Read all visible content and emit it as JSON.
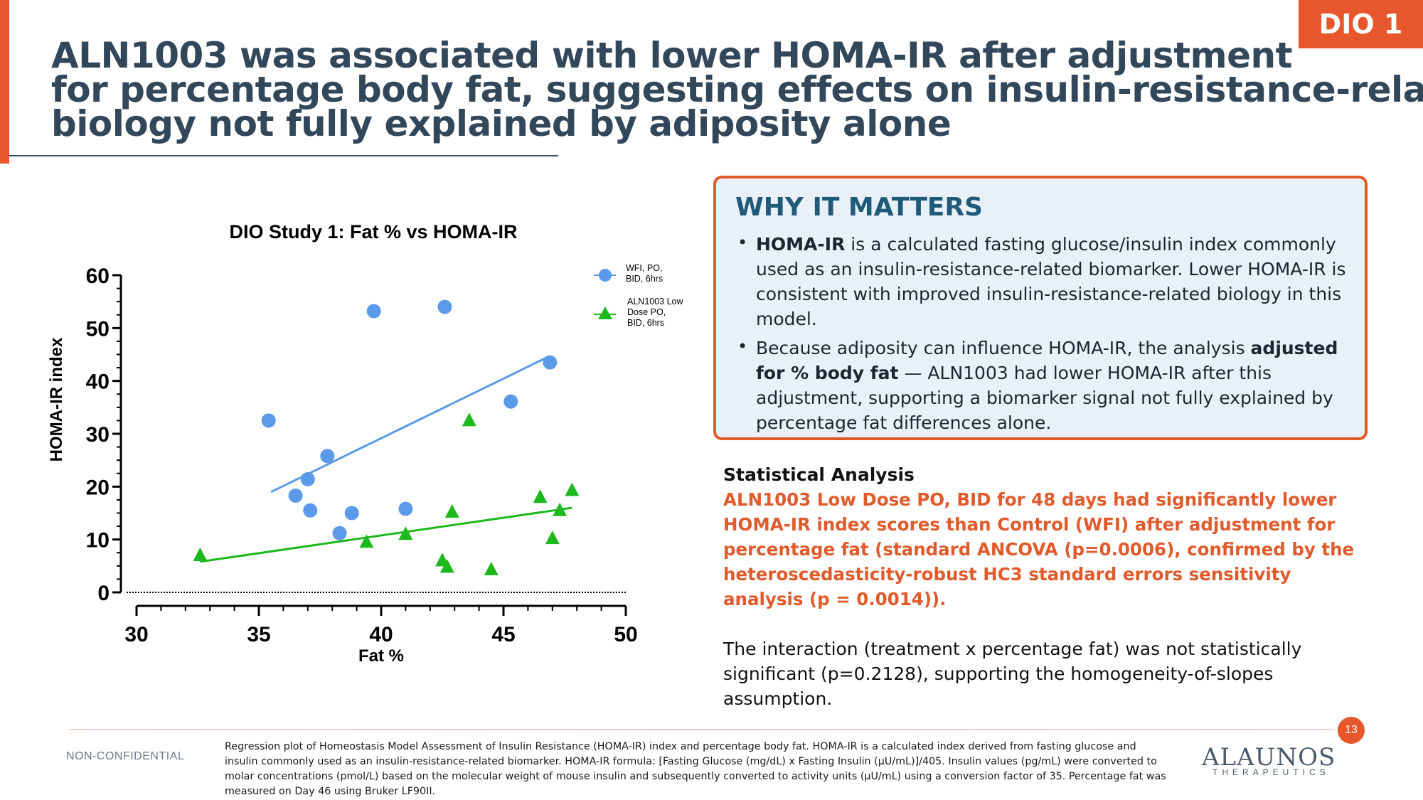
{
  "tag": "DIO 1",
  "title": {
    "line1": "ALN1003 was associated with lower HOMA-IR after adjustment",
    "line2": "for percentage body fat, suggesting effects on insulin-resistance-related",
    "line3": "biology not fully explained by adiposity alone"
  },
  "why": {
    "title": "WHY IT MATTERS",
    "b1_bold": "HOMA-IR",
    "b1_text": " is a calculated fasting glucose/insulin index commonly used as an insulin-resistance-related biomarker. Lower HOMA-IR is consistent with improved insulin-resistance-related biology in this model.",
    "b2_pre": "Because adiposity can influence HOMA-IR, the analysis ",
    "b2_bold": "adjusted for % body fat",
    "b2_post": " — ALN1003 had lower HOMA-IR after this adjustment, supporting a biomarker signal not fully explained by percentage fat differences alone."
  },
  "stats": {
    "heading": "Statistical Analysis",
    "highlight": "ALN1003 Low Dose PO, BID for 48 days had significantly lower HOMA-IR index scores than Control (WFI) after adjustment for percentage fat (standard ANCOVA (p=0.0006), confirmed by the heteroscedasticity-robust HC3 standard errors sensitivity analysis (p = 0.0014)).",
    "body": "The interaction (treatment x percentage fat) was not statistically significant (p=0.2128), supporting the homogeneity-of-slopes assumption."
  },
  "footer": {
    "nonconf": "NON-CONFIDENTIAL",
    "page": "13",
    "footnote": "Regression plot of Homeostasis Model Assessment of Insulin Resistance (HOMA-IR) index and percentage body fat.  HOMA-IR is a calculated index derived from fasting glucose and insulin commonly used as an insulin-resistance-related biomarker. HOMA-IR formula: [Fasting Glucose (mg/dL) x Fasting Insulin (µU/mL)]/405. Insulin values (pg/mL) were converted to molar concentrations (pmol/L) based on the molecular weight of mouse insulin and subsequently converted to activity units (µU/mL) using a conversion factor of 35. Percentage fat was measured on Day 46 using Bruker LF90II.",
    "logo": "ALAUNOS",
    "logo_sub": "THERAPEUTICS"
  },
  "chart_data": {
    "type": "scatter",
    "title": "DIO Study 1: Fat % vs HOMA-IR",
    "xlabel": "Fat %",
    "ylabel": "HOMA-IR index",
    "xlim": [
      30,
      50
    ],
    "ylim": [
      0,
      60
    ],
    "xticks": [
      "30",
      "35",
      "40",
      "45",
      "50"
    ],
    "yticks": [
      "0",
      "10",
      "20",
      "30",
      "40",
      "50",
      "60"
    ],
    "legend_position": "top-right",
    "series": [
      {
        "name": "WFI, PO, BID, 6hrs",
        "marker": "circle",
        "color": "#5b9ae8",
        "line_color": "#5b9ae8",
        "points": [
          [
            35.4,
            32.5
          ],
          [
            36.5,
            18.3
          ],
          [
            37.0,
            21.4
          ],
          [
            37.1,
            15.5
          ],
          [
            37.8,
            25.8
          ],
          [
            38.3,
            11.2
          ],
          [
            38.8,
            15.0
          ],
          [
            39.7,
            53.2
          ],
          [
            41.0,
            15.8
          ],
          [
            42.6,
            54.0
          ],
          [
            45.3,
            36.1
          ],
          [
            46.9,
            43.5
          ]
        ],
        "fit": [
          [
            35.5,
            19.0
          ],
          [
            46.8,
            44.5
          ]
        ]
      },
      {
        "name": "ALN1003 Low Dose PO, BID, 6hrs",
        "marker": "triangle",
        "color": "#1db81d",
        "line_color": "#1db81d",
        "points": [
          [
            32.6,
            7.0
          ],
          [
            39.4,
            9.5
          ],
          [
            41.0,
            11.0
          ],
          [
            42.5,
            6.0
          ],
          [
            42.7,
            4.8
          ],
          [
            42.9,
            15.2
          ],
          [
            43.6,
            32.5
          ],
          [
            44.5,
            4.3
          ],
          [
            46.5,
            18.0
          ],
          [
            47.0,
            10.2
          ],
          [
            47.3,
            15.5
          ],
          [
            47.8,
            19.3
          ]
        ],
        "fit": [
          [
            32.6,
            5.8
          ],
          [
            47.8,
            16.0
          ]
        ]
      }
    ]
  }
}
